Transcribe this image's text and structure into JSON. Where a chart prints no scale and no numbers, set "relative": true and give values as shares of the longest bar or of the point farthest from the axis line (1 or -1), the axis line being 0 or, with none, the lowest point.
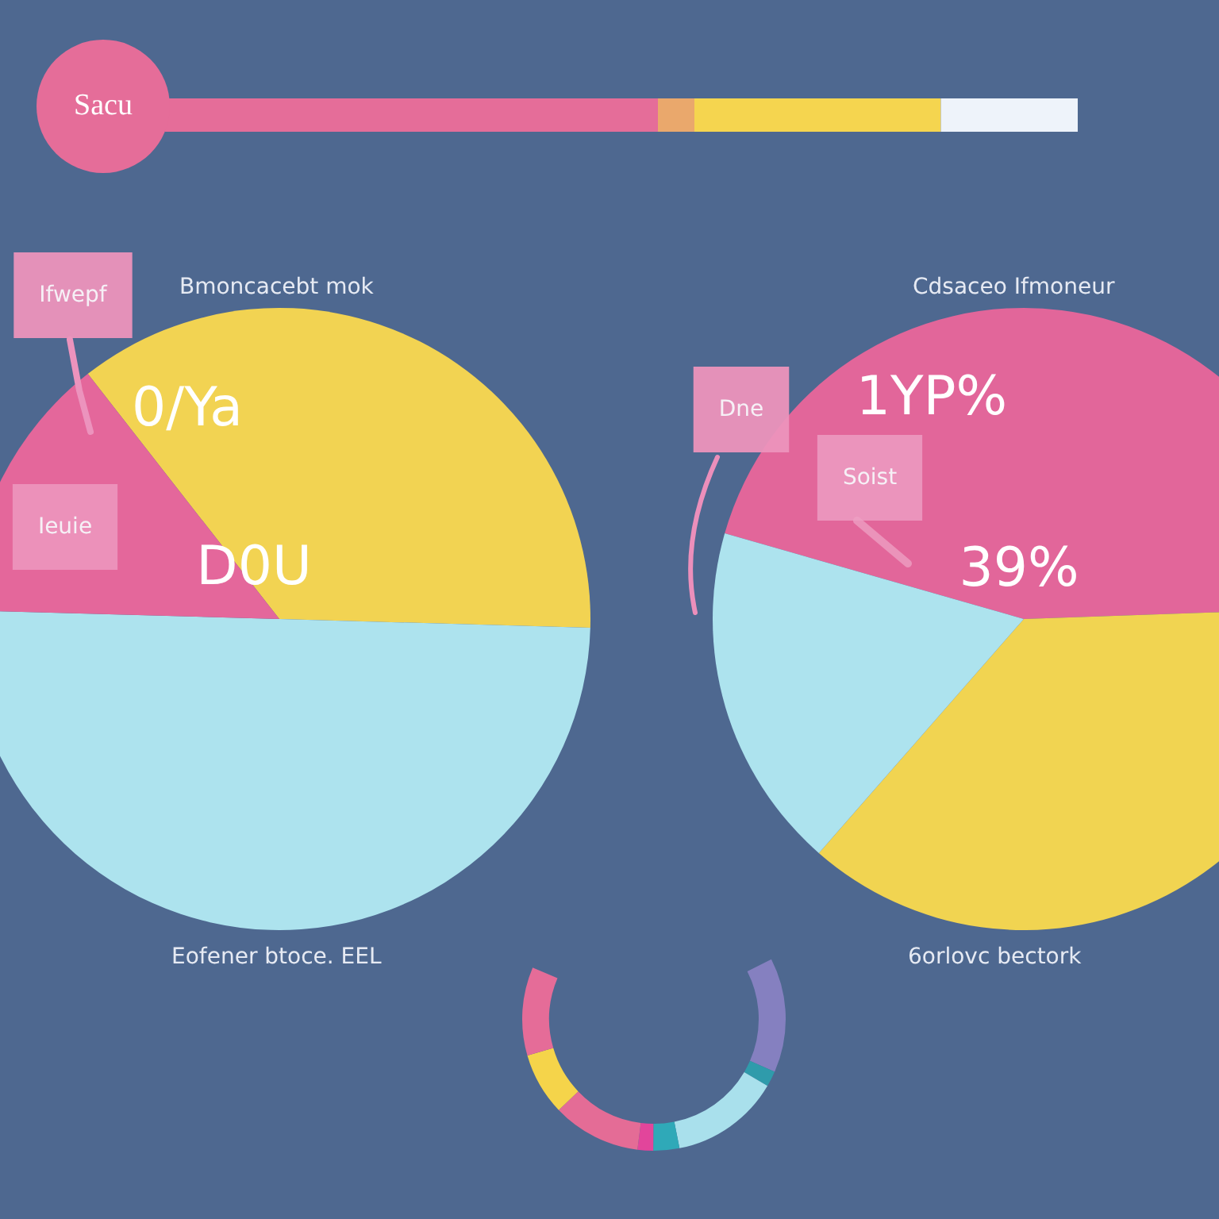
{
  "chart_data": [
    {
      "type": "bar",
      "title": "Sacu",
      "orientation": "horizontal",
      "stacked": true,
      "relative": true,
      "categories": [
        null
      ],
      "series": [
        {
          "color": "#e56d99",
          "values": [
            0.54
          ]
        },
        {
          "color": "#eaa86c",
          "values": [
            0.04
          ]
        },
        {
          "color": "#f5d54f",
          "values": [
            0.27
          ]
        },
        {
          "color": "#eef3fa",
          "values": [
            0.15
          ]
        }
      ]
    },
    {
      "type": "pie",
      "title": "Bmoncacebt mok",
      "categories": [
        null,
        null,
        null
      ],
      "values": [
        36,
        50,
        14
      ],
      "colors": [
        "#f2d352",
        "#ade3ee",
        "#e4679b"
      ],
      "annotations": [
        "Ifwepf",
        "Ieuie",
        "0/Ya",
        "D0U",
        "Eofener btoce. EEL"
      ]
    },
    {
      "type": "pie",
      "title": "Cdsaceo Ifmoneur",
      "categories": [
        null,
        null,
        null
      ],
      "values": [
        45,
        37,
        18
      ],
      "colors": [
        "#e2669a",
        "#f1d451",
        "#ade3ee"
      ],
      "annotations": [
        "Dne",
        "Soist",
        "1YP%",
        "39%",
        "6orlovc bectork"
      ]
    },
    {
      "type": "donut",
      "categories": [
        null,
        null,
        null,
        null,
        null,
        null,
        null,
        null
      ],
      "values": [
        22,
        3,
        21,
        5,
        3,
        17,
        12,
        17
      ],
      "colors": [
        "#8580c0",
        "#2f9bab",
        "#a9e0ec",
        "#2fa9b8",
        "#e2459b",
        "#e46c96",
        "#f5d44a",
        "#e56c98"
      ]
    }
  ]
}
